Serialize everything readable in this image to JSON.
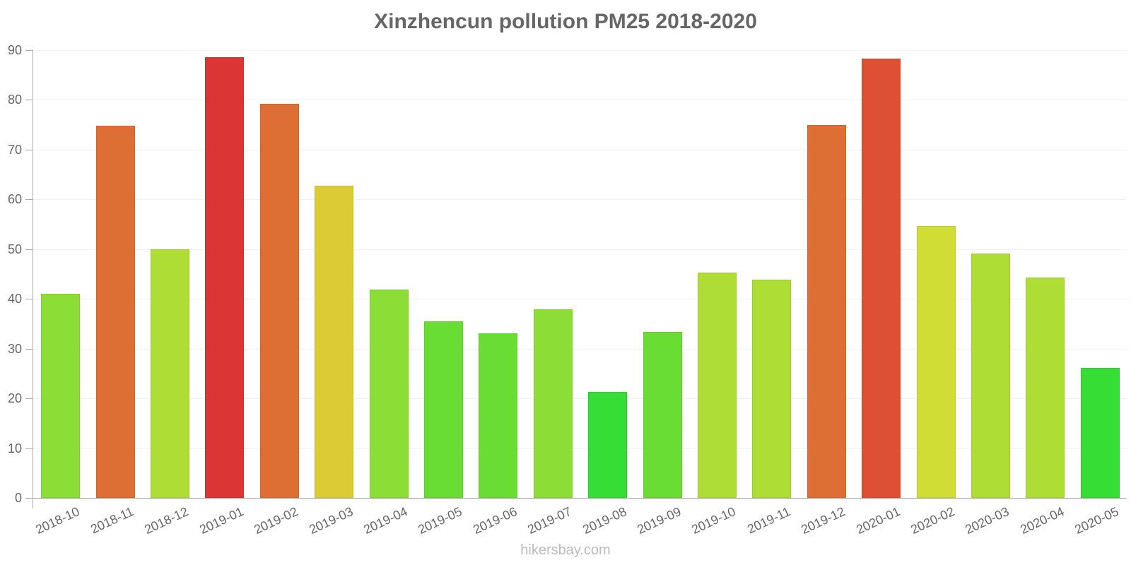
{
  "chart_data": {
    "type": "bar",
    "title": "Xinzhencun pollution PM25 2018-2020",
    "xlabel": "",
    "ylabel": "",
    "ylim": [
      0,
      90
    ],
    "yticks": [
      0,
      10,
      20,
      30,
      40,
      50,
      60,
      70,
      80,
      90
    ],
    "grid": true,
    "legend": null,
    "categories": [
      "2018-10",
      "2018-11",
      "2018-12",
      "2019-01",
      "2019-02",
      "2019-03",
      "2019-04",
      "2019-05",
      "2019-06",
      "2019-07",
      "2019-08",
      "2019-09",
      "2019-10",
      "2019-11",
      "2019-12",
      "2020-01",
      "2020-02",
      "2020-03",
      "2020-04",
      "2020-05"
    ],
    "values": [
      41.0,
      74.8,
      50.0,
      88.6,
      79.2,
      62.7,
      41.9,
      35.5,
      33.1,
      37.9,
      21.3,
      33.3,
      45.3,
      43.9,
      74.9,
      88.2,
      54.6,
      49.1,
      44.2,
      26.1
    ],
    "colors": [
      "#8cdd35",
      "#dd6f34",
      "#aedd35",
      "#dc3535",
      "#dd6f34",
      "#dccb35",
      "#8cdd35",
      "#6add35",
      "#6add35",
      "#8cdd35",
      "#35dd35",
      "#6add35",
      "#aedd35",
      "#aedd35",
      "#dd6f34",
      "#dd5034",
      "#cfdd35",
      "#aedd35",
      "#aedd35",
      "#35dd35"
    ]
  },
  "footer": {
    "watermark": "hikersbay.com"
  }
}
